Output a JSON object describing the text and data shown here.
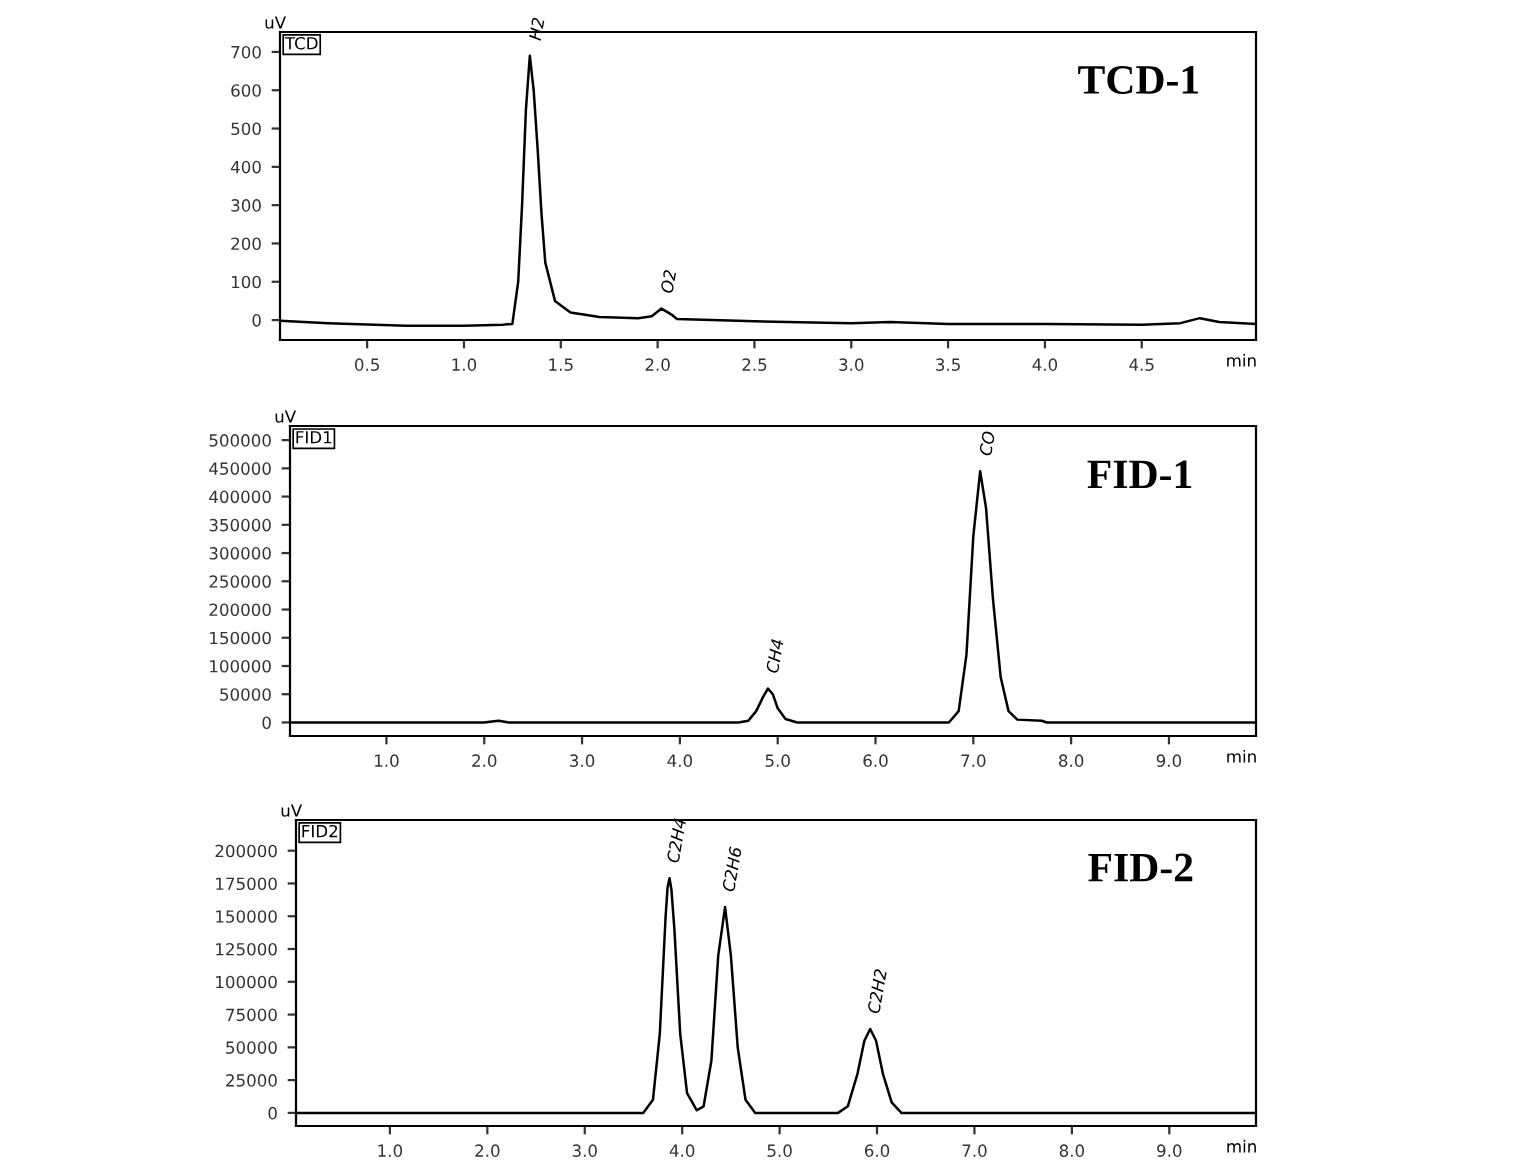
{
  "chart_data": [
    {
      "type": "line",
      "title": "TCD-1",
      "ylabel": "uV",
      "xlabel": "min",
      "xlim": [
        0.05,
        5.09
      ],
      "ylim": [
        -52,
        752
      ],
      "xticks": [
        0.5,
        {
          "value": 1,
          "label": "1.0"
        },
        1.5,
        {
          "value": 2,
          "label": "2.0"
        },
        2.5,
        {
          "value": 3,
          "label": "3.0"
        },
        3.5,
        {
          "value": 4,
          "label": "4.0"
        },
        4.5
      ],
      "yticks": [
        0,
        100,
        200,
        300,
        400,
        500,
        600,
        700
      ],
      "annotations": [
        "TCD",
        {
          "text": "H2",
          "x": 1.34,
          "y": 690
        },
        {
          "text": "O2",
          "x": 2.02,
          "y": 30
        }
      ],
      "series": [
        {
          "color": "#000000",
          "x": [
            0.05,
            0.3,
            0.7,
            1.0,
            1.2,
            1.25,
            1.28,
            1.3,
            1.32,
            1.34,
            1.36,
            1.38,
            1.4,
            1.42,
            1.47,
            1.55,
            1.7,
            1.9,
            1.97,
            2.02,
            2.07,
            2.1,
            2.5,
            3.0,
            3.2,
            3.5,
            4.0,
            4.5,
            4.7,
            4.8,
            4.9,
            5.09
          ],
          "values": [
            -2,
            -8,
            -15,
            -15,
            -12,
            -10,
            100,
            300,
            550,
            690,
            600,
            450,
            280,
            150,
            50,
            20,
            8,
            5,
            10,
            30,
            15,
            3,
            -3,
            -8,
            -5,
            -10,
            -10,
            -12,
            -8,
            5,
            -5,
            -10
          ]
        }
      ]
    },
    {
      "type": "line",
      "title": "FID-1",
      "ylabel": "uV",
      "xlabel": "min",
      "xlim": [
        0.014,
        9.89
      ],
      "ylim": [
        -24000,
        525000
      ],
      "xticks": [
        {
          "value": 1,
          "label": "1.0"
        },
        {
          "value": 2,
          "label": "2.0"
        },
        {
          "value": 3,
          "label": "3.0"
        },
        {
          "value": 4,
          "label": "4.0"
        },
        {
          "value": 5,
          "label": "5.0"
        },
        {
          "value": 6,
          "label": "6.0"
        },
        {
          "value": 7,
          "label": "7.0"
        },
        {
          "value": 8,
          "label": "8.0"
        },
        {
          "value": 9,
          "label": "9.0"
        }
      ],
      "yticks": [
        0,
        50000,
        100000,
        150000,
        200000,
        250000,
        300000,
        350000,
        400000,
        450000,
        500000
      ],
      "annotations": [
        "FID1",
        {
          "text": "CH4",
          "x": 4.9,
          "y": 60000
        },
        {
          "text": "CO",
          "x": 7.07,
          "y": 445000
        }
      ],
      "series": [
        {
          "color": "#000000",
          "x": [
            0.014,
            2.0,
            2.1,
            2.15,
            2.25,
            4.6,
            4.7,
            4.78,
            4.85,
            4.9,
            4.95,
            5.0,
            5.08,
            5.2,
            6.75,
            6.85,
            6.93,
            7.0,
            7.07,
            7.13,
            7.2,
            7.28,
            7.36,
            7.45,
            7.7,
            7.75,
            9.89
          ],
          "values": [
            0,
            0,
            2000,
            3000,
            0,
            0,
            3000,
            20000,
            45000,
            60000,
            50000,
            25000,
            6000,
            0,
            0,
            20000,
            120000,
            330000,
            445000,
            380000,
            220000,
            80000,
            20000,
            5000,
            3000,
            0,
            0
          ]
        }
      ]
    },
    {
      "type": "line",
      "title": "FID-2",
      "ylabel": "uV",
      "xlabel": "min",
      "xlim": [
        0.036,
        9.89
      ],
      "ylim": [
        -10000,
        223400
      ],
      "xticks": [
        {
          "value": 1,
          "label": "1.0"
        },
        {
          "value": 2,
          "label": "2.0"
        },
        {
          "value": 3,
          "label": "3.0"
        },
        {
          "value": 4,
          "label": "4.0"
        },
        {
          "value": 5,
          "label": "5.0"
        },
        {
          "value": 6,
          "label": "6.0"
        },
        {
          "value": 7,
          "label": "7.0"
        },
        {
          "value": 8,
          "label": "8.0"
        },
        {
          "value": 9,
          "label": "9.0"
        }
      ],
      "yticks": [
        0,
        25000,
        50000,
        75000,
        100000,
        125000,
        150000,
        175000,
        200000
      ],
      "annotations": [
        "FID2",
        {
          "text": "C2H4",
          "x": 3.87,
          "y": 179000
        },
        {
          "text": "C2H6",
          "x": 4.44,
          "y": 157000
        },
        {
          "text": "C2H2",
          "x": 5.93,
          "y": 64000
        }
      ],
      "series": [
        {
          "color": "#000000",
          "x": [
            0.036,
            3.6,
            3.7,
            3.77,
            3.83,
            3.85,
            3.87,
            3.89,
            3.92,
            3.98,
            4.05,
            4.15,
            4.22,
            4.3,
            4.37,
            4.44,
            4.5,
            4.57,
            4.65,
            4.75,
            5.6,
            5.7,
            5.8,
            5.87,
            5.93,
            5.99,
            6.06,
            6.15,
            6.25,
            9.89
          ],
          "values": [
            0,
            0,
            10000,
            60000,
            150000,
            172000,
            179000,
            170000,
            140000,
            60000,
            15000,
            2000,
            5000,
            40000,
            120000,
            157000,
            120000,
            50000,
            10000,
            0,
            0,
            5000,
            30000,
            55000,
            64000,
            55000,
            30000,
            8000,
            0,
            0
          ]
        }
      ]
    }
  ]
}
